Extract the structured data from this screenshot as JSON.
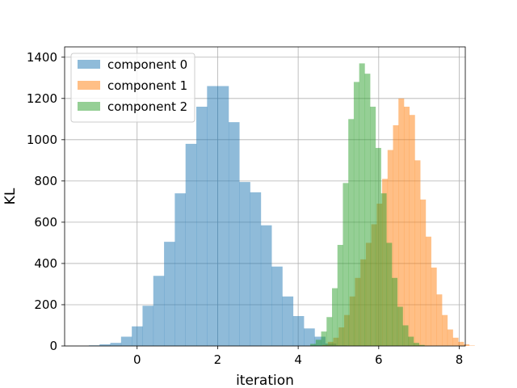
{
  "chart_data": {
    "type": "histogram",
    "xlabel": "iteration",
    "ylabel": "KL",
    "xlim": [
      -1.8,
      8.15
    ],
    "ylim": [
      0,
      1450
    ],
    "xticks": [
      0,
      2,
      4,
      6,
      8
    ],
    "yticks": [
      0,
      200,
      400,
      600,
      800,
      1000,
      1200,
      1400
    ],
    "grid": true,
    "legend_position": "top-left",
    "series": [
      {
        "name": "component 0",
        "color": "#1f77b4",
        "opacity": 0.5,
        "bin_start": -1.2,
        "bin_width": 0.267,
        "values": [
          3,
          8,
          15,
          45,
          95,
          195,
          340,
          505,
          740,
          980,
          1160,
          1260,
          1260,
          1085,
          795,
          745,
          585,
          385,
          240,
          145,
          85,
          45,
          12,
          3
        ]
      },
      {
        "name": "component 1",
        "color": "#ff7f0e",
        "opacity": 0.5,
        "bin_start": 4.6,
        "bin_width": 0.135,
        "values": [
          5,
          20,
          40,
          90,
          150,
          240,
          330,
          420,
          500,
          590,
          690,
          810,
          950,
          1070,
          1200,
          1160,
          1120,
          900,
          710,
          530,
          380,
          250,
          150,
          80,
          40,
          20,
          8,
          2
        ]
      },
      {
        "name": "component 2",
        "color": "#2ca02c",
        "opacity": 0.5,
        "bin_start": 4.3,
        "bin_width": 0.135,
        "values": [
          10,
          30,
          70,
          140,
          280,
          490,
          790,
          1100,
          1280,
          1370,
          1320,
          1160,
          960,
          740,
          500,
          330,
          190,
          100,
          45,
          15,
          5
        ]
      }
    ]
  }
}
